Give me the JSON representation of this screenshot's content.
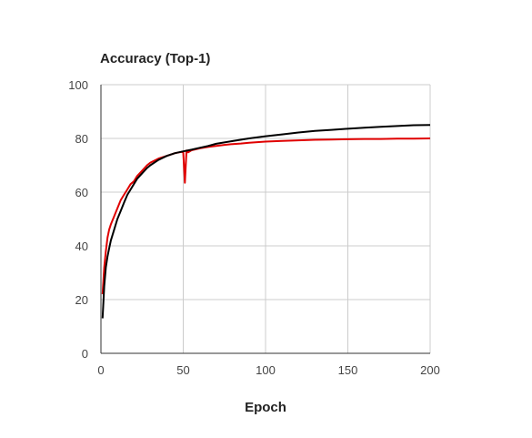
{
  "chart_data": {
    "type": "line",
    "title": "Accuracy (Top-1)",
    "xlabel": "Epoch",
    "ylabel": "",
    "xlim": [
      0,
      200
    ],
    "ylim": [
      0,
      100
    ],
    "xticks": [
      0,
      50,
      100,
      150,
      200
    ],
    "yticks": [
      0,
      20,
      40,
      60,
      80,
      100
    ],
    "grid": true,
    "series": [
      {
        "color": "#000000",
        "x": [
          1,
          2,
          3,
          4,
          5,
          6,
          8,
          10,
          12,
          14,
          16,
          18,
          20,
          22,
          25,
          28,
          30,
          35,
          40,
          45,
          50,
          55,
          60,
          65,
          70,
          80,
          90,
          100,
          110,
          120,
          130,
          140,
          150,
          160,
          170,
          180,
          190,
          200
        ],
        "y": [
          13,
          25,
          32,
          36,
          39,
          42,
          46,
          50,
          53,
          56,
          59,
          61,
          63,
          65,
          67,
          69,
          70,
          72,
          73.5,
          74.5,
          75.2,
          75.8,
          76.5,
          77.2,
          78,
          79,
          80,
          80.8,
          81.5,
          82.2,
          82.8,
          83.2,
          83.6,
          84,
          84.3,
          84.6,
          84.9,
          85
        ]
      },
      {
        "color": "#e00000",
        "x": [
          1,
          2,
          3,
          4,
          5,
          6,
          8,
          10,
          12,
          14,
          16,
          18,
          20,
          22,
          25,
          28,
          30,
          35,
          40,
          45,
          49,
          50,
          51,
          52,
          53,
          55,
          60,
          65,
          70,
          75,
          80,
          85,
          90,
          95,
          100,
          110,
          120,
          130,
          140,
          150,
          160,
          170,
          180,
          190,
          200
        ],
        "y": [
          22,
          32,
          38,
          43,
          46,
          48,
          51,
          54,
          57,
          59,
          61,
          63,
          64,
          66,
          68,
          70,
          71,
          72.5,
          73.5,
          74.5,
          75,
          74.8,
          63.5,
          75.5,
          74.8,
          75.6,
          76.3,
          76.8,
          77.2,
          77.6,
          77.9,
          78.1,
          78.4,
          78.6,
          78.8,
          79.1,
          79.3,
          79.5,
          79.6,
          79.7,
          79.8,
          79.8,
          79.9,
          79.9,
          80
        ]
      }
    ]
  }
}
